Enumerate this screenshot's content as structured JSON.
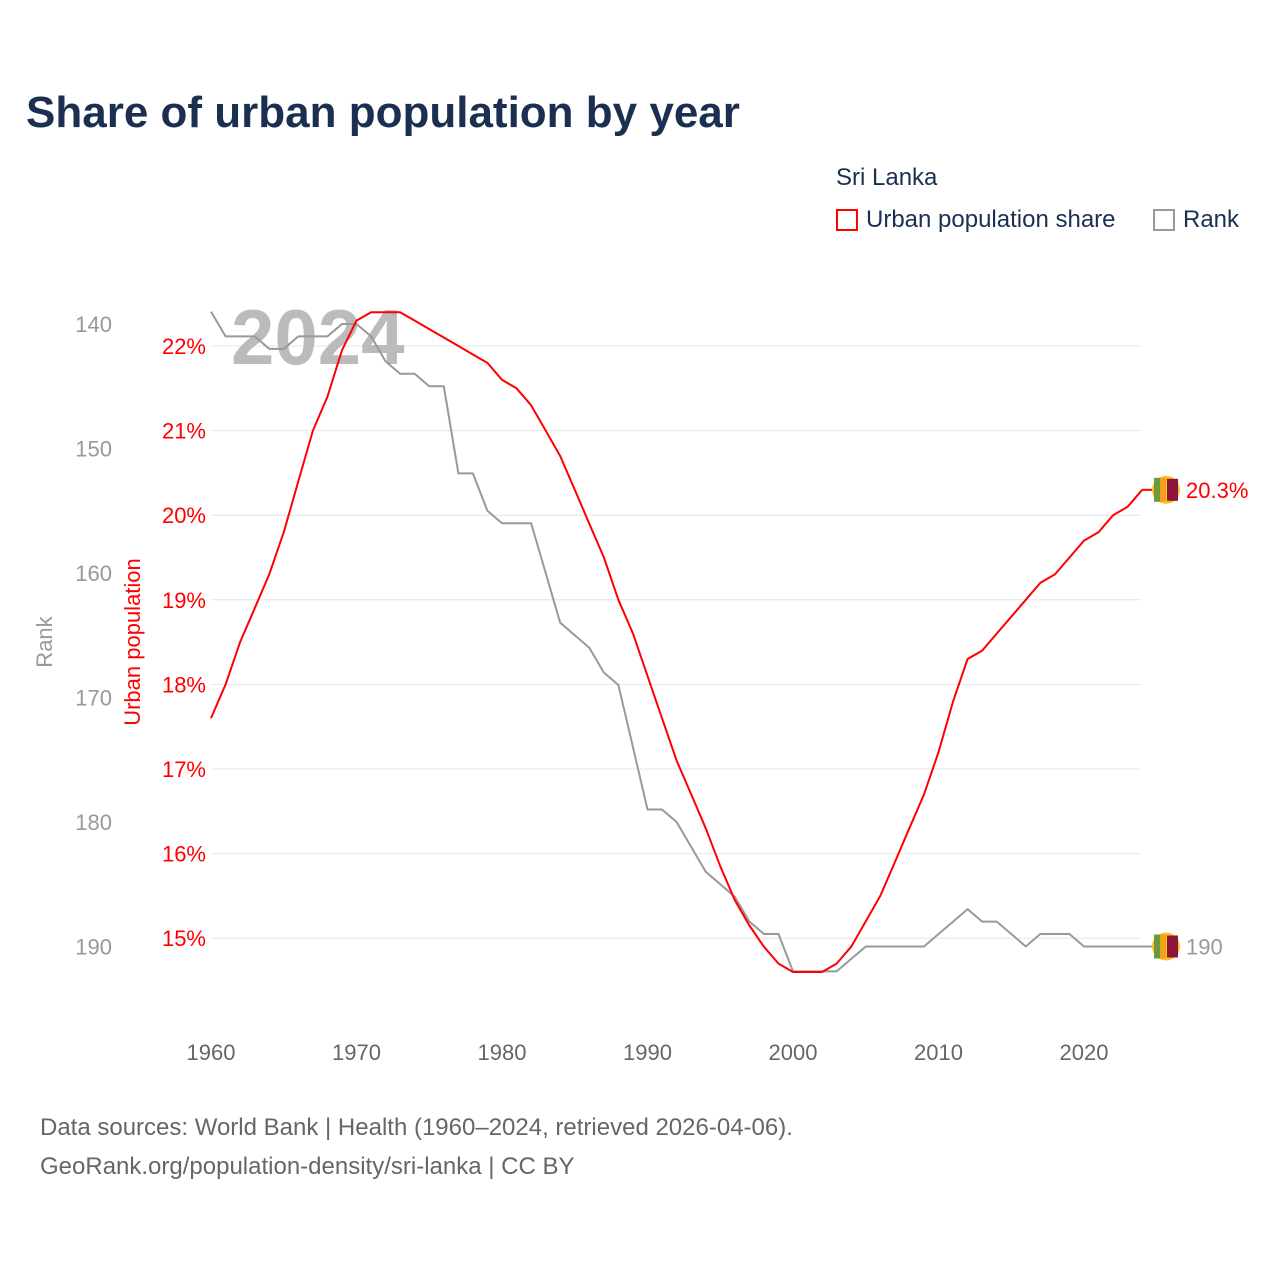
{
  "chart_data": {
    "type": "line",
    "title": "Share of urban population by year",
    "legend_title": "Sri Lanka",
    "legend_placement": "top-right",
    "year_label": "2024",
    "x": [
      1960,
      1961,
      1962,
      1963,
      1964,
      1965,
      1966,
      1967,
      1968,
      1969,
      1970,
      1971,
      1972,
      1973,
      1974,
      1975,
      1976,
      1977,
      1978,
      1979,
      1980,
      1981,
      1982,
      1983,
      1984,
      1985,
      1986,
      1987,
      1988,
      1989,
      1990,
      1991,
      1992,
      1993,
      1994,
      1995,
      1996,
      1997,
      1998,
      1999,
      2000,
      2001,
      2002,
      2003,
      2004,
      2005,
      2006,
      2007,
      2008,
      2009,
      2010,
      2011,
      2012,
      2013,
      2014,
      2015,
      2016,
      2017,
      2018,
      2019,
      2020,
      2021,
      2022,
      2023,
      2024
    ],
    "xticks": [
      1960,
      1970,
      1980,
      1990,
      2000,
      2010,
      2020
    ],
    "xlim": [
      1960,
      2024
    ],
    "series": [
      {
        "name": "Urban population share",
        "axis": "left",
        "color": "#ff0000",
        "ylabel": "Urban population",
        "values": [
          17.6,
          18.0,
          18.5,
          18.9,
          19.3,
          19.8,
          20.4,
          21.0,
          21.4,
          21.95,
          22.3,
          22.4,
          22.4,
          22.4,
          22.3,
          22.2,
          22.1,
          22.0,
          21.9,
          21.8,
          21.6,
          21.5,
          21.3,
          21.0,
          20.7,
          20.3,
          19.9,
          19.5,
          19.0,
          18.6,
          18.1,
          17.6,
          17.1,
          16.7,
          16.3,
          15.85,
          15.45,
          15.15,
          14.9,
          14.7,
          14.6,
          14.6,
          14.6,
          14.7,
          14.9,
          15.2,
          15.5,
          15.9,
          16.3,
          16.7,
          17.2,
          17.8,
          18.3,
          18.4,
          18.6,
          18.8,
          19.0,
          19.2,
          19.3,
          19.5,
          19.7,
          19.8,
          20.0,
          20.1,
          20.3
        ],
        "end_label": "20.3%"
      },
      {
        "name": "Rank",
        "axis": "right",
        "color": "#999999",
        "ylabel": "Rank",
        "values": [
          139,
          141,
          141,
          141,
          142,
          142,
          141,
          141,
          141,
          140,
          140,
          141,
          143,
          144,
          144,
          145,
          145,
          152,
          152,
          155,
          156,
          156,
          156,
          160,
          164,
          165,
          166,
          168,
          169,
          174,
          179,
          179,
          180,
          182,
          184,
          185,
          186,
          188,
          189,
          189,
          192,
          192,
          192,
          192,
          191,
          190,
          190,
          190,
          190,
          190,
          189,
          188,
          187,
          188,
          188,
          189,
          190,
          189,
          189,
          189,
          190,
          190,
          190,
          190,
          190
        ],
        "end_label": "190"
      }
    ],
    "left_axis": {
      "ticks": [
        22,
        21,
        20,
        19,
        18,
        17,
        16,
        15
      ],
      "tick_labels": [
        "22%",
        "21%",
        "20%",
        "19%",
        "18%",
        "17%",
        "16%",
        "15%"
      ],
      "ylim": [
        14.15,
        22.8
      ]
    },
    "rank_axis": {
      "ticks": [
        140,
        150,
        160,
        170,
        180,
        190
      ],
      "tick_labels": [
        "140",
        "150",
        "160",
        "170",
        "180",
        "190"
      ],
      "inverted": true
    },
    "grid": true
  },
  "footer": {
    "line1": "Data sources: World Bank | Health (1960–2024, retrieved 2026-04-06).",
    "line2": "GeoRank.org/population-density/sri-lanka | CC BY"
  }
}
